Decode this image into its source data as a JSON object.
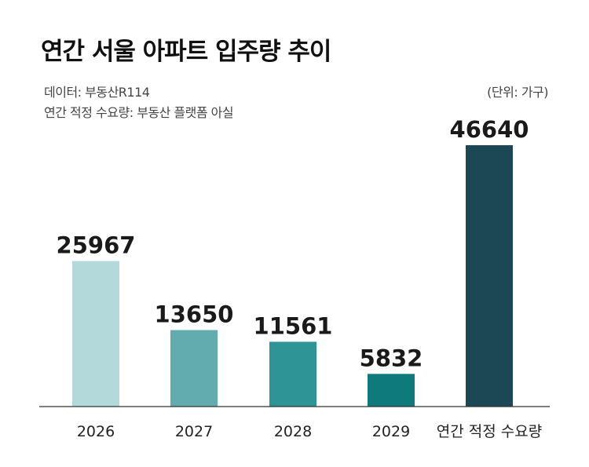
{
  "header": {
    "title": "연간 서울 아파트 입주량 추이",
    "source_line1": "데이터: 부동산R114",
    "source_line2": "연간 적정 수요량: 부동산 플랫폼 아실",
    "unit": "(단위: 가구)"
  },
  "chart_data": {
    "type": "bar",
    "title": "연간 서울 아파트 입주량 추이",
    "unit": "(단위: 가구)",
    "categories": [
      "2026",
      "2027",
      "2028",
      "2029",
      "연간 적정 수요량"
    ],
    "values": [
      25967,
      13650,
      11561,
      5832,
      46640
    ],
    "colors": [
      "#b3d9db",
      "#62abae",
      "#2e9496",
      "#0f7a7c",
      "#1c4856"
    ],
    "ylim": [
      0,
      46640
    ],
    "grid": false,
    "legend": "none"
  }
}
